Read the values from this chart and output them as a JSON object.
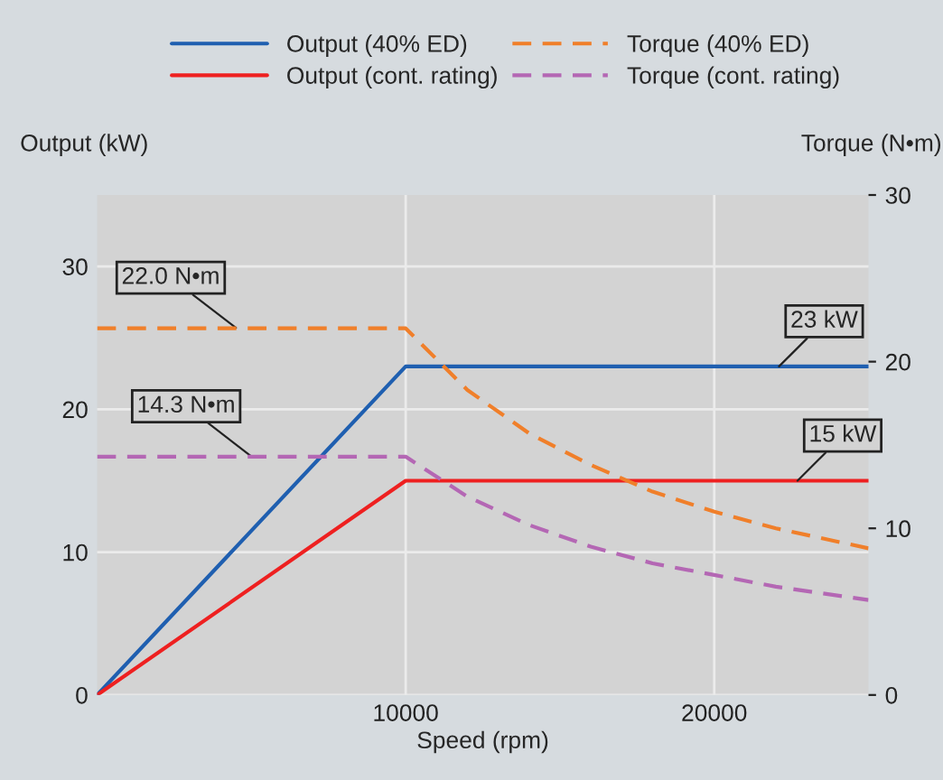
{
  "chart_data": {
    "type": "line",
    "xlabel": "Speed (rpm)",
    "ylabel": "Output (kW)",
    "y2label": "Torque (N•m)",
    "xlim": [
      0,
      25000
    ],
    "xticks": [
      10000,
      20000
    ],
    "ylim": [
      0,
      35
    ],
    "yticks": [
      0,
      10,
      20,
      30
    ],
    "y2lim": [
      0,
      30
    ],
    "y2ticks": [
      0,
      10,
      20,
      30
    ],
    "grid": true,
    "legend": "top",
    "marker": "none",
    "series": [
      {
        "name": "Output (40% ED)",
        "color": "#1f5fb0",
        "line_style": "solid",
        "x": [
          0,
          10000,
          25000
        ],
        "values": [
          0,
          23,
          23
        ]
      },
      {
        "name": "Output (cont. rating)",
        "color": "#ee2020",
        "line_style": "solid",
        "x": [
          0,
          10000,
          25000
        ],
        "values": [
          0,
          15,
          15
        ]
      },
      {
        "name": "Torque (40% ED)",
        "color": "#f07f2a",
        "line_style": "dashed",
        "axis": "y2",
        "x": [
          0,
          10000,
          12000,
          14000,
          16000,
          18000,
          20000,
          22000,
          25000
        ],
        "values": [
          22,
          22,
          18.3,
          15.7,
          13.8,
          12.2,
          11.0,
          10.0,
          8.8
        ]
      },
      {
        "name": "Torque (cont. rating)",
        "color": "#b467b4",
        "line_style": "dashed",
        "axis": "y2",
        "x": [
          0,
          10000,
          12000,
          14000,
          16000,
          18000,
          20000,
          22000,
          25000
        ],
        "values": [
          14.3,
          14.3,
          11.9,
          10.2,
          8.9,
          7.9,
          7.2,
          6.5,
          5.7
        ]
      }
    ],
    "annotations": [
      {
        "text": "22.0 N•m",
        "x": 4500,
        "y": 25.7
      },
      {
        "text": "14.3 N•m",
        "x": 5000,
        "y": 16.7
      },
      {
        "text": "23 kW",
        "x": 22100,
        "y": 23
      },
      {
        "text": "15 kW",
        "x": 22700,
        "y": 15
      }
    ]
  }
}
